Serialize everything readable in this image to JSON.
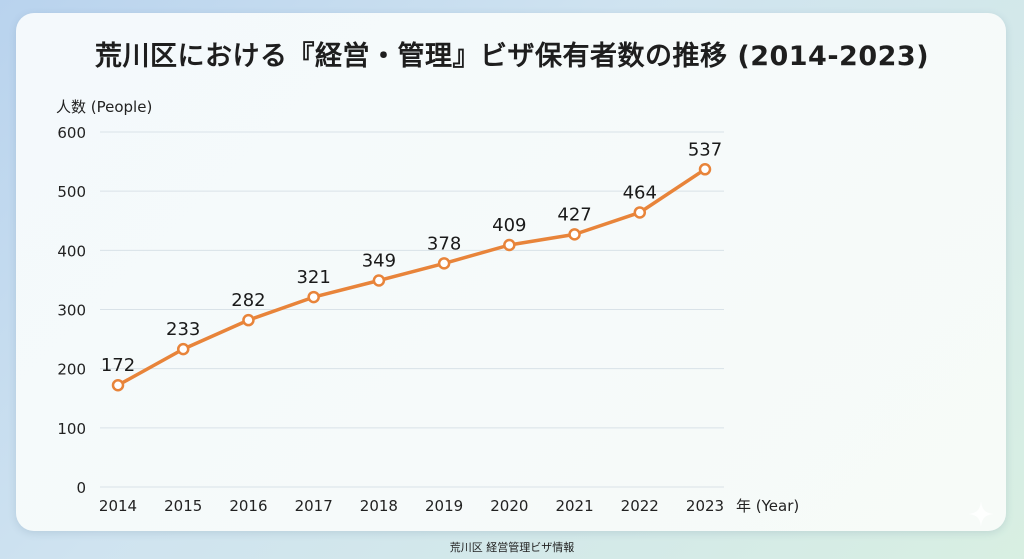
{
  "title": "荒川区における『経営・管理』ビザ保有者数の推移 (2014-2023)",
  "footer": "荒川区 経営管理ビザ情報",
  "chart_data": {
    "type": "line",
    "title": "荒川区における『経営・管理』ビザ保有者数の推移 (2014-2023)",
    "xlabel": "年 (Year)",
    "ylabel": "人数 (People)",
    "categories": [
      "2014",
      "2015",
      "2016",
      "2017",
      "2018",
      "2019",
      "2020",
      "2021",
      "2022",
      "2023"
    ],
    "values": [
      172,
      233,
      282,
      321,
      349,
      378,
      409,
      427,
      464,
      537
    ],
    "ylim": [
      0,
      600
    ],
    "yticks": [
      0,
      100,
      200,
      300,
      400,
      500,
      600
    ],
    "grid": true,
    "line_color": "#e8843a"
  }
}
